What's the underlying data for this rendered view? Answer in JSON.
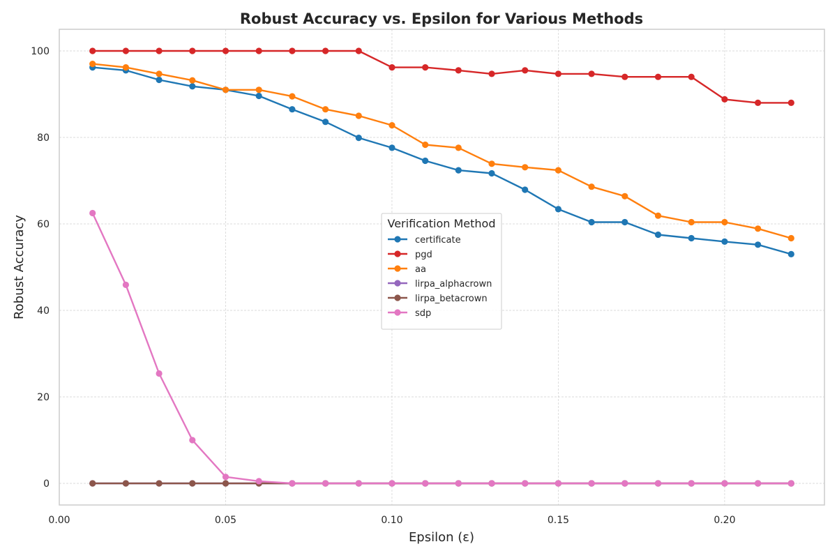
{
  "chart_data": {
    "type": "line",
    "title": "Robust Accuracy vs. Epsilon for Various Methods",
    "xlabel": "Epsilon (ε)",
    "ylabel": "Robust Accuracy",
    "xlim": [
      0.0,
      0.23
    ],
    "ylim": [
      -5,
      105
    ],
    "xticks": [
      0.0,
      0.05,
      0.1,
      0.15,
      0.2
    ],
    "xtick_labels": [
      "0.00",
      "0.05",
      "0.10",
      "0.15",
      "0.20"
    ],
    "yticks": [
      0,
      20,
      40,
      60,
      80,
      100
    ],
    "ytick_labels": [
      "0",
      "20",
      "40",
      "60",
      "80",
      "100"
    ],
    "grid": true,
    "legend": {
      "title": "Verification Method",
      "placement": "center-right"
    },
    "x": [
      0.01,
      0.02,
      0.03,
      0.04,
      0.05,
      0.06,
      0.07,
      0.08,
      0.09,
      0.1,
      0.11,
      0.12,
      0.13,
      0.14,
      0.15,
      0.16,
      0.17,
      0.18,
      0.19,
      0.2,
      0.21,
      0.22
    ],
    "series": [
      {
        "name": "certificate",
        "color": "#1f77b4",
        "values": [
          96.2,
          95.5,
          93.3,
          91.8,
          91.0,
          89.6,
          86.5,
          83.6,
          79.9,
          77.6,
          74.6,
          72.4,
          71.7,
          67.9,
          63.4,
          60.4,
          60.4,
          57.5,
          56.7,
          55.9,
          55.2,
          53.0
        ]
      },
      {
        "name": "pgd",
        "color": "#d62728",
        "values": [
          100,
          100,
          100,
          100,
          100,
          100,
          100,
          100,
          100,
          96.2,
          96.2,
          95.5,
          94.7,
          95.5,
          94.7,
          94.7,
          94.0,
          94.0,
          94.0,
          88.8,
          88.0,
          88.0
        ]
      },
      {
        "name": "aa",
        "color": "#ff7f0e",
        "values": [
          97.0,
          96.2,
          94.7,
          93.2,
          91.0,
          91.0,
          89.5,
          86.5,
          85.0,
          82.8,
          78.3,
          77.6,
          73.9,
          73.1,
          72.4,
          68.6,
          66.4,
          61.9,
          60.4,
          60.4,
          58.9,
          56.7
        ]
      },
      {
        "name": "lirpa_alphacrown",
        "color": "#9467bd",
        "values": [
          0,
          0,
          0,
          0,
          0,
          0,
          0,
          0,
          0,
          0,
          0,
          0,
          0,
          0,
          0,
          0,
          0,
          0,
          0,
          0,
          0,
          0
        ]
      },
      {
        "name": "lirpa_betacrown",
        "color": "#8c564b",
        "values": [
          0,
          0,
          0,
          0,
          0,
          0,
          0,
          0,
          0,
          0,
          0,
          0,
          0,
          0,
          0,
          0,
          0,
          0,
          0,
          0,
          0,
          0
        ]
      },
      {
        "name": "sdp",
        "color": "#e377c2",
        "values": [
          62.5,
          45.9,
          25.4,
          10.0,
          1.5,
          0.5,
          0.0,
          0.0,
          0.0,
          0.0,
          0.0,
          0.0,
          0.0,
          0.0,
          0.0,
          0.0,
          0.0,
          0.0,
          0.0,
          0.0,
          0.0,
          0.0
        ]
      }
    ]
  }
}
